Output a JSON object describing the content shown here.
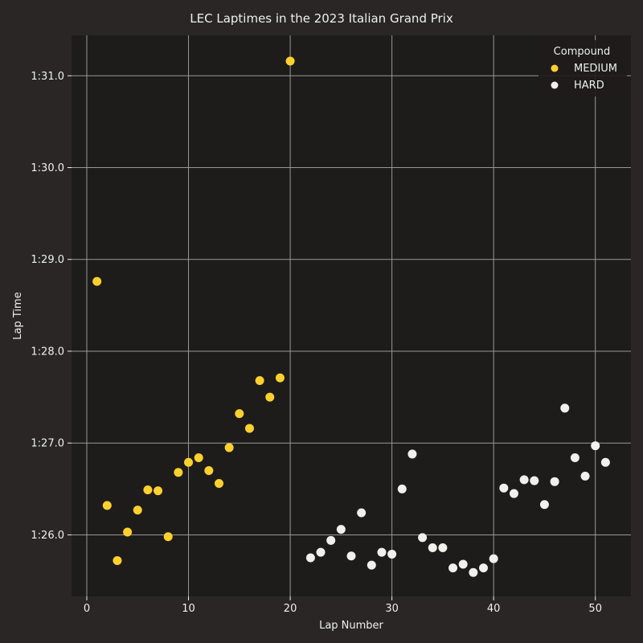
{
  "chart_data": {
    "type": "scatter",
    "title": "LEC Laptimes in the 2023 Italian Grand Prix",
    "xlabel": "Lap Number",
    "ylabel": "Lap Time",
    "xlim": [
      -1.5,
      53.5
    ],
    "ylim": [
      85.33,
      91.44
    ],
    "x_ticks": [
      0,
      10,
      20,
      30,
      40,
      50
    ],
    "y_ticks": [
      {
        "value": 86.0,
        "label": "1:26.0"
      },
      {
        "value": 87.0,
        "label": "1:27.0"
      },
      {
        "value": 88.0,
        "label": "1:28.0"
      },
      {
        "value": 89.0,
        "label": "1:29.0"
      },
      {
        "value": 90.0,
        "label": "1:30.0"
      },
      {
        "value": 91.0,
        "label": "1:31.0"
      }
    ],
    "grid": true,
    "legend": {
      "title": "Compound",
      "position": "top-right"
    },
    "series": [
      {
        "name": "MEDIUM",
        "color": "#ffd12e",
        "x": [
          1,
          2,
          3,
          4,
          5,
          6,
          7,
          8,
          9,
          10,
          11,
          12,
          13,
          14,
          15,
          16,
          17,
          18,
          19,
          20
        ],
        "y": [
          88.76,
          86.32,
          85.72,
          86.03,
          86.27,
          86.49,
          86.48,
          85.98,
          86.68,
          86.79,
          86.84,
          86.7,
          86.56,
          86.95,
          87.32,
          87.16,
          87.68,
          87.5,
          87.71,
          91.16
        ]
      },
      {
        "name": "HARD",
        "color": "#f0f0ec",
        "x": [
          22,
          23,
          24,
          25,
          26,
          27,
          28,
          29,
          30,
          31,
          32,
          33,
          34,
          35,
          36,
          37,
          38,
          39,
          40,
          41,
          42,
          43,
          44,
          45,
          46,
          47,
          48,
          49,
          50,
          51
        ],
        "y": [
          85.75,
          85.81,
          85.94,
          86.06,
          85.77,
          86.24,
          85.67,
          85.81,
          85.79,
          86.5,
          86.88,
          85.97,
          85.86,
          85.86,
          85.64,
          85.68,
          85.59,
          85.64,
          85.74,
          86.51,
          86.45,
          86.6,
          86.59,
          86.33,
          86.58,
          87.38,
          86.84,
          86.64,
          86.97,
          86.79
        ]
      }
    ]
  }
}
